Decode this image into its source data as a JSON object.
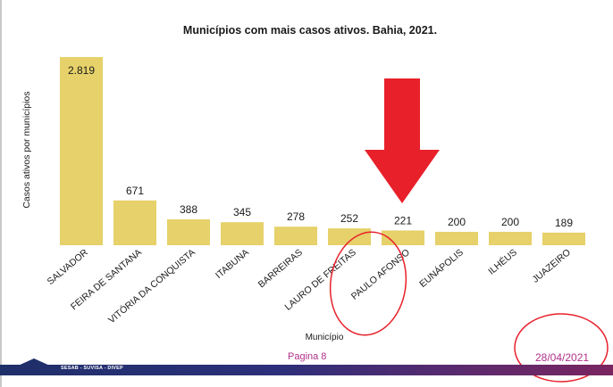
{
  "chart_data": {
    "type": "bar",
    "title": "Municípios com mais casos ativos. Bahia, 2021.",
    "xlabel": "Município",
    "ylabel": "Casos ativos por municípios",
    "categories": [
      "SALVADOR",
      "FEIRA DE SANTANA",
      "VITÓRIA DA CONQUISTA",
      "ITABUNA",
      "BARREIRAS",
      "LAURO DE FREITAS",
      "PAULO AFONSO",
      "EUNÁPOLIS",
      "ILHÉUS",
      "JUAZEIRO"
    ],
    "values": [
      2819,
      671,
      388,
      345,
      278,
      252,
      221,
      200,
      200,
      189
    ],
    "value_labels": [
      "2.819",
      "671",
      "388",
      "345",
      "278",
      "252",
      "221",
      "200",
      "200",
      "189"
    ],
    "ylim": [
      0,
      3000
    ],
    "grid": false,
    "bar_color": "#e6d16a",
    "annotation_color": "#e8202a",
    "annotations": [
      "red down arrow pointing at PAULO AFONSO",
      "red circle around PAULO AFONSO label",
      "red circle around date"
    ]
  },
  "footer": {
    "page_label": "Pagina 8",
    "date": "28/04/2021",
    "org_text": "SESAB - SUVISA - DIVEP"
  }
}
